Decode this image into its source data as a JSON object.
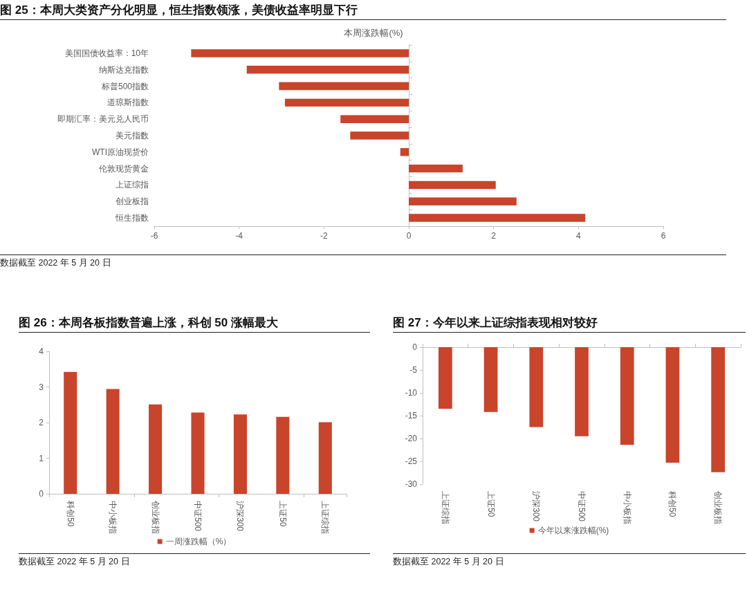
{
  "chart_data": [
    {
      "type": "bar",
      "orientation": "horizontal",
      "title": "图 25：本周大类资产分化明显，恒生指数领涨，美债收益率明显下行",
      "subtitle": "本周涨跌幅(%)",
      "categories": [
        "美国国债收益率：10年",
        "纳斯达克指数",
        "标普500指数",
        "道琼斯指数",
        "即期汇率：美元兑人民币",
        "美元指数",
        "WTI原油现货价",
        "伦敦现货黄金",
        "上证综指",
        "创业板指",
        "恒生指数"
      ],
      "values": [
        -5.13,
        -3.82,
        -3.06,
        -2.92,
        -1.61,
        -1.38,
        -0.2,
        1.27,
        2.05,
        2.54,
        4.16
      ],
      "color": "#c8442a",
      "xlim": [
        -6,
        6
      ],
      "xticks": [
        -6,
        -4,
        -2,
        0,
        2,
        4,
        6
      ],
      "annotations": [
        "数据截至 2022 年 5 月 20 日"
      ]
    },
    {
      "type": "bar",
      "title": "图 26：本周各板指数普遍上涨，科创 50 涨幅最大",
      "categories": [
        "科创50",
        "中小板指",
        "创业板指",
        "中证500",
        "沪深300",
        "上证50",
        "上证综指"
      ],
      "series": [
        {
          "name": "一周涨跌幅（%）",
          "color": "#c8442a",
          "values": [
            3.42,
            2.94,
            2.51,
            2.28,
            2.23,
            2.16,
            2.01
          ]
        }
      ],
      "ylim": [
        0,
        4
      ],
      "yticks": [
        0,
        1,
        2,
        3,
        4
      ],
      "legend": "bottom",
      "annotations": [
        "数据截至 2022 年 5 月 20 日"
      ]
    },
    {
      "type": "bar",
      "title": "图 27：今年以来上证综指表现相对较好",
      "categories": [
        "上证综指",
        "上证50",
        "沪深300",
        "中证500",
        "中小板指",
        "科创50",
        "创业板指"
      ],
      "series": [
        {
          "name": "今年以来涨跌幅(%)",
          "color": "#c8442a",
          "values": [
            -13.5,
            -14.2,
            -17.5,
            -19.5,
            -21.4,
            -25.3,
            -27.4
          ]
        }
      ],
      "ylim": [
        -30,
        0
      ],
      "yticks": [
        0,
        -5,
        -10,
        -15,
        -20,
        -25,
        -30
      ],
      "legend": "bottom",
      "annotations": [
        "数据截至 2022 年 5 月 20 日"
      ]
    }
  ]
}
